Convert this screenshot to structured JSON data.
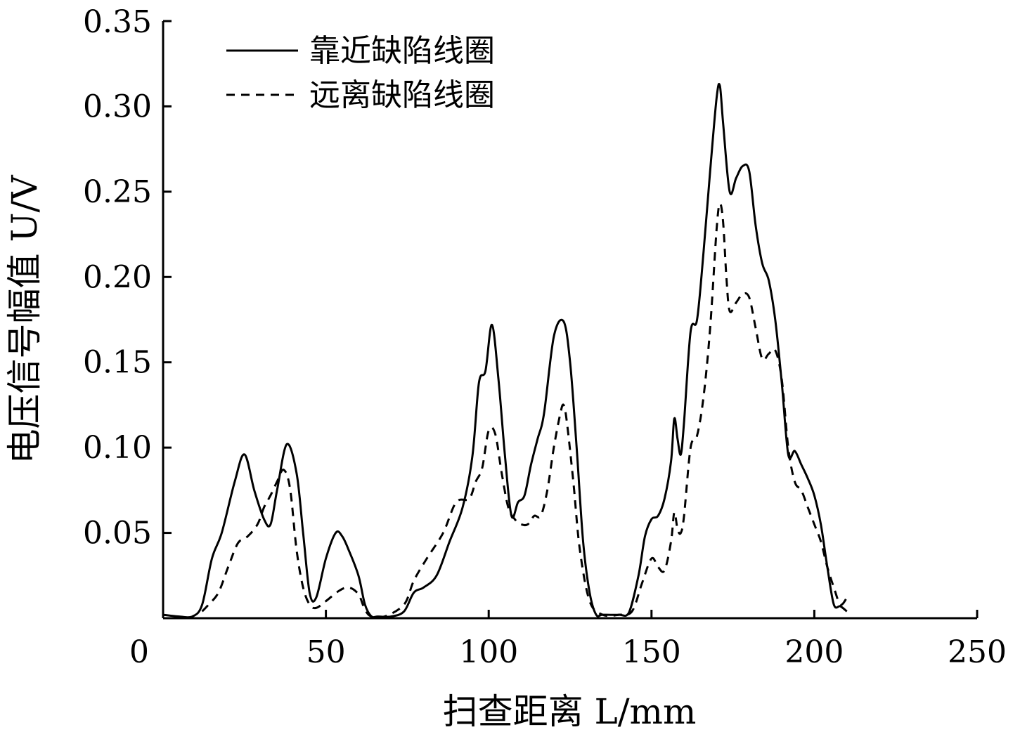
{
  "chart_data": {
    "type": "line",
    "xlabel": "扫查距离 L/mm",
    "ylabel": "电压信号幅值 U/V",
    "xlim": [
      0,
      250
    ],
    "ylim": [
      0,
      0.35
    ],
    "xticks": [
      0,
      50,
      100,
      150,
      200,
      250
    ],
    "xtick_labels": [
      "0",
      "50",
      "100",
      "150",
      "200",
      "250"
    ],
    "yticks": [
      0.05,
      0.1,
      0.15,
      0.2,
      0.25,
      0.3,
      0.35
    ],
    "ytick_labels": [
      "0.05",
      "0.10",
      "0.15",
      "0.20",
      "0.25",
      "0.30",
      "0.35"
    ],
    "grid": false,
    "legend_position": "top-left",
    "series": [
      {
        "name": "靠近缺陷线圈",
        "style": "solid",
        "x": [
          0,
          5,
          9,
          12,
          15,
          18,
          22,
          25,
          28,
          31,
          33,
          35,
          38,
          41,
          43,
          45,
          47,
          50,
          53,
          55,
          57,
          60,
          62,
          64,
          66,
          70,
          74,
          77,
          80,
          84,
          88,
          92,
          95,
          97,
          99,
          101,
          103,
          105,
          107,
          109,
          111,
          113,
          115,
          117,
          120,
          123,
          125,
          127,
          129,
          131,
          133,
          135,
          140,
          143,
          146,
          148,
          150,
          152,
          154,
          156,
          157,
          158,
          159,
          160,
          162,
          164,
          166,
          168,
          170,
          171,
          172,
          174,
          176,
          178,
          180,
          182,
          184,
          186,
          188,
          190,
          192,
          194,
          196,
          198,
          200,
          202,
          204,
          206,
          208,
          210
        ],
        "y": [
          0.002,
          0.001,
          0.001,
          0.008,
          0.035,
          0.05,
          0.08,
          0.096,
          0.075,
          0.058,
          0.055,
          0.075,
          0.102,
          0.085,
          0.05,
          0.015,
          0.012,
          0.035,
          0.05,
          0.048,
          0.04,
          0.025,
          0.008,
          0.001,
          0.001,
          0.001,
          0.004,
          0.015,
          0.018,
          0.025,
          0.045,
          0.065,
          0.095,
          0.138,
          0.145,
          0.172,
          0.14,
          0.095,
          0.06,
          0.068,
          0.072,
          0.09,
          0.105,
          0.12,
          0.165,
          0.174,
          0.15,
          0.1,
          0.045,
          0.015,
          0.002,
          0.002,
          0.002,
          0.003,
          0.025,
          0.048,
          0.058,
          0.06,
          0.07,
          0.092,
          0.117,
          0.105,
          0.096,
          0.115,
          0.168,
          0.175,
          0.215,
          0.262,
          0.305,
          0.312,
          0.29,
          0.25,
          0.258,
          0.265,
          0.262,
          0.23,
          0.208,
          0.198,
          0.175,
          0.138,
          0.096,
          0.098,
          0.09,
          0.082,
          0.072,
          0.055,
          0.03,
          0.008,
          0.007,
          0.004
        ]
      },
      {
        "name": "远离缺陷线圈",
        "style": "dashed",
        "x": [
          12,
          14,
          17,
          20,
          23,
          26,
          29,
          31,
          33,
          35,
          37,
          39,
          41,
          43,
          45,
          47,
          50,
          54,
          57,
          60,
          62,
          64,
          68,
          74,
          77,
          81,
          86,
          90,
          94,
          96,
          98,
          100,
          102,
          104,
          106,
          108,
          110,
          112,
          114,
          116,
          118,
          120,
          122,
          123,
          124,
          126,
          128,
          131,
          135,
          140,
          144,
          147,
          150,
          152,
          154,
          156,
          157,
          158,
          159,
          160,
          162,
          164,
          166,
          168,
          170,
          171,
          172,
          173,
          174,
          176,
          178,
          180,
          182,
          184,
          186,
          188,
          190,
          192,
          194,
          196,
          198,
          200,
          202,
          204,
          206,
          208,
          210
        ],
        "y": [
          0.004,
          0.008,
          0.015,
          0.03,
          0.044,
          0.048,
          0.055,
          0.065,
          0.072,
          0.08,
          0.087,
          0.076,
          0.04,
          0.018,
          0.008,
          0.006,
          0.01,
          0.016,
          0.018,
          0.014,
          0.005,
          0.001,
          0.001,
          0.008,
          0.022,
          0.035,
          0.05,
          0.068,
          0.07,
          0.08,
          0.088,
          0.11,
          0.108,
          0.085,
          0.065,
          0.058,
          0.055,
          0.055,
          0.06,
          0.06,
          0.075,
          0.1,
          0.12,
          0.125,
          0.115,
          0.08,
          0.04,
          0.01,
          0.002,
          0.002,
          0.004,
          0.02,
          0.035,
          0.03,
          0.028,
          0.045,
          0.062,
          0.052,
          0.05,
          0.06,
          0.1,
          0.107,
          0.13,
          0.17,
          0.228,
          0.243,
          0.232,
          0.2,
          0.18,
          0.185,
          0.19,
          0.188,
          0.17,
          0.152,
          0.155,
          0.157,
          0.14,
          0.1,
          0.08,
          0.075,
          0.065,
          0.055,
          0.045,
          0.03,
          0.018,
          0.008,
          0.012
        ]
      }
    ]
  }
}
